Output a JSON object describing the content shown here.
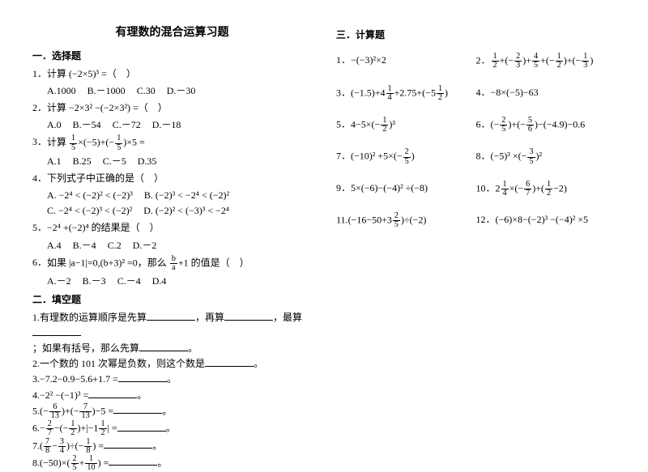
{
  "title": "有理数的混合运算习题",
  "sec1": {
    "heading": "一．选择题",
    "q1": {
      "stem": "计算 (−2×5)³ =（　）",
      "opts": [
        "A.1000",
        "B.－1000",
        "C.30",
        "D.－30"
      ]
    },
    "q2": {
      "stem": "计算 −2×3² −(−2×3²) =（　）",
      "opts": [
        "A.0",
        "B.－54",
        "C.－72",
        "D.－18"
      ]
    },
    "q3": {
      "stem_a": "计算 ",
      "stem_b": "×(−5)+(−",
      "stem_c": ")×5 =",
      "opts": [
        "A.1",
        "B.25",
        "C.－5",
        "D.35"
      ]
    },
    "q4": {
      "stem": "下列式子中正确的是（　）",
      "a": "A. −2⁴ < (−2)² < (−2)³",
      "b": "B. (−2)³ < −2⁴ < (−2)²",
      "c": "C. −2⁴ < (−2)³ < (−2)²",
      "d": "D. (−2)² < (−3)³ < −2⁴"
    },
    "q5": {
      "stem": "−2⁴ +(−2)⁴ 的结果是（　）",
      "opts": [
        "A.4",
        "B.－4",
        "C.2",
        "D.－2"
      ]
    },
    "q6": {
      "stem_a": "如果 |a−1|=0,(b+3)² =0，那么 ",
      "stem_b": "+1 的值是（　）",
      "opts": [
        "A.－2",
        "B.－3",
        "C.－4",
        "D.4"
      ]
    }
  },
  "sec2": {
    "heading": "二．填空题",
    "f1a": "有理数的运算顺序是先算",
    "f1b": "，再算",
    "f1c": "，最算",
    "f1d": "；如果有括号，那么先算",
    "f1e": "。",
    "f2": "一个数的 101 次幂是负数，则这个数是",
    "f3": "−7.2−0.9−5.6+1.7 =",
    "f4": "−2² −(−1)³ =",
    "f5a": "(−",
    "f5b": ")+(−",
    "f5c": ")−5 =",
    "f6a": "−",
    "f6b": "−(−",
    "f6c": ")+|−1",
    "f6d": "| =",
    "f7a": "(",
    "f7b": "−",
    "f7c": ")÷(−",
    "f7d": ") =",
    "f8a": "(−50)×(",
    "f8b": "+",
    "f8c": ") ="
  },
  "sec3": {
    "heading": "三．计算题",
    "r1a": "−(−3)²×2",
    "r1b_a": "",
    "r1b_b": "+(−",
    "r1b_c": ")+",
    "r1b_d": "+(−",
    "r1b_e": ")+(−",
    "r1b_f": ")",
    "r3a_a": "(−1.5)+4",
    "r3a_b": "+2.75+(−5",
    "r3a_c": ")",
    "r3b": "−8×(−5)−63",
    "r5a_a": "4−5×(−",
    "r5a_b": ")³",
    "r5b_a": "(−",
    "r5b_b": ")+(−",
    "r5b_c": ")−(−4.9)−0.6",
    "r7a_a": "(−10)² +5×(−",
    "r7a_b": ")",
    "r7b_a": "(−5)³ ×(−",
    "r7b_b": ")²",
    "r9a": "5×(−6)−(−4)² ÷(−8)",
    "r9b_a": "2",
    "r9b_b": "×(−",
    "r9b_c": ")+(",
    "r9b_d": "−2)",
    "r11a_a": "(−16−50+3",
    "r11a_b": ")÷(−2)",
    "r11b": "(−6)×8−(−2)³ −(−4)² ×5"
  },
  "fracs": {
    "15": {
      "n": "1",
      "d": "5"
    },
    "12": {
      "n": "1",
      "d": "2"
    },
    "23": {
      "n": "2",
      "d": "3"
    },
    "45": {
      "n": "4",
      "d": "5"
    },
    "13": {
      "n": "1",
      "d": "3"
    },
    "14": {
      "n": "1",
      "d": "4"
    },
    "613": {
      "n": "6",
      "d": "13"
    },
    "713": {
      "n": "7",
      "d": "13"
    },
    "27": {
      "n": "2",
      "d": "7"
    },
    "78": {
      "n": "7",
      "d": "8"
    },
    "34": {
      "n": "3",
      "d": "4"
    },
    "18": {
      "n": "1",
      "d": "8"
    },
    "25": {
      "n": "2",
      "d": "5"
    },
    "110": {
      "n": "1",
      "d": "10"
    },
    "35": {
      "n": "3",
      "d": "5"
    },
    "56": {
      "n": "5",
      "d": "6"
    },
    "67": {
      "n": "6",
      "d": "7"
    },
    "ba": {
      "n": "b",
      "d": "a"
    }
  }
}
